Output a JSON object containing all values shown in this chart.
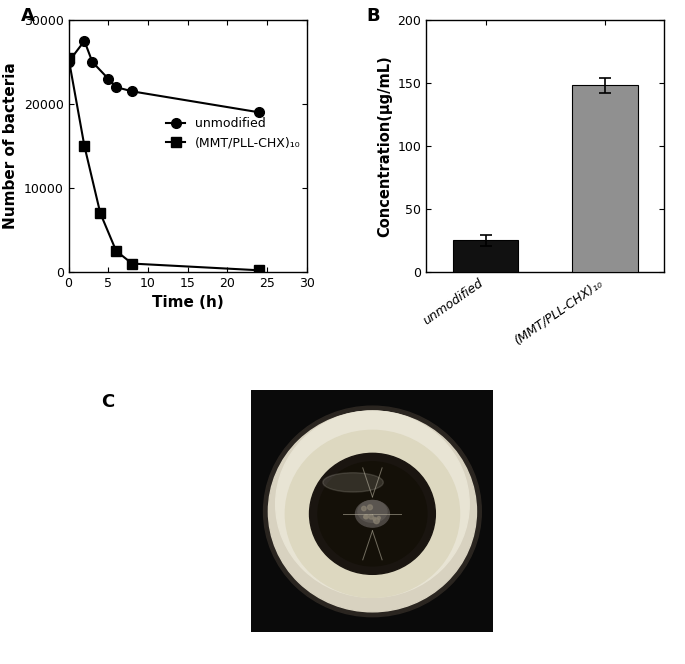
{
  "panel_A": {
    "unmodified_x": [
      0,
      2,
      3,
      5,
      6,
      8,
      24
    ],
    "unmodified_y": [
      25000,
      27500,
      25000,
      23000,
      22000,
      21500,
      19000
    ],
    "coated_x": [
      0,
      2,
      4,
      6,
      8,
      24
    ],
    "coated_y": [
      25500,
      15000,
      7000,
      2500,
      1000,
      200
    ],
    "xlabel": "Time (h)",
    "ylabel": "Number of bacteria",
    "legend_unmodified": "unmodified",
    "legend_coated": "(MMT/PLL-CHX)₁₀",
    "xlim": [
      0,
      30
    ],
    "ylim": [
      0,
      30000
    ],
    "yticks": [
      0,
      10000,
      20000,
      30000
    ],
    "xticks": [
      0,
      5,
      10,
      15,
      20,
      25,
      30
    ],
    "xtick_labels": [
      "0",
      "5",
      "10",
      "15",
      "20",
      "25",
      "30"
    ],
    "panel_label": "A"
  },
  "panel_B": {
    "categories": [
      "unmodified",
      "(MMT/PLL-CHX)₁₀"
    ],
    "values": [
      25,
      148
    ],
    "errors": [
      4,
      6
    ],
    "bar_colors": [
      "#111111",
      "#909090"
    ],
    "ylabel": "Concentration(μg/mL)",
    "ylim": [
      0,
      200
    ],
    "yticks": [
      0,
      50,
      100,
      150,
      200
    ],
    "panel_label": "B"
  },
  "panel_C": {
    "label": "C"
  },
  "figure_bg": "#ffffff",
  "line_color": "#000000",
  "marker_size": 7,
  "linewidth": 1.5,
  "font_size_label": 11,
  "font_size_tick": 9,
  "font_size_panel": 13
}
